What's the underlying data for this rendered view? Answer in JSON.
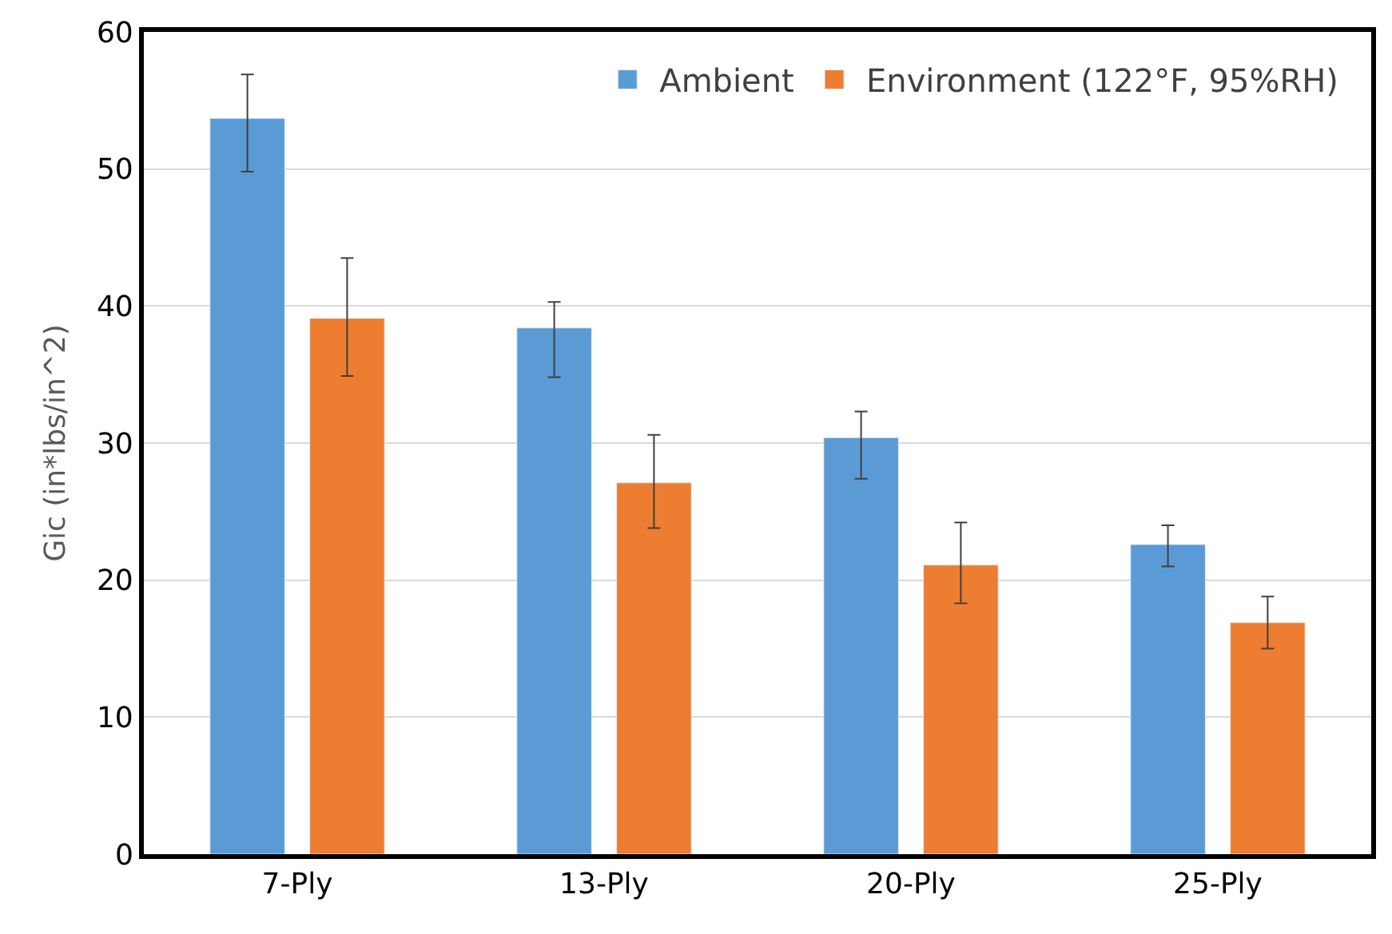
{
  "chart_data": {
    "type": "bar",
    "ylabel": "Gic (in*lbs/in^2)",
    "categories": [
      "7-Ply",
      "13-Ply",
      "20-Ply",
      "25-Ply"
    ],
    "series": [
      {
        "name": "Ambient",
        "color": "#5b9bd5",
        "values": [
          53.7,
          38.4,
          30.4,
          22.6
        ],
        "errors": [
          [
            49.8,
            56.9
          ],
          [
            34.8,
            40.3
          ],
          [
            27.4,
            32.3
          ],
          [
            21.0,
            24.0
          ]
        ]
      },
      {
        "name": "Environment (122°F, 95%RH)",
        "color": "#ed7d31",
        "values": [
          39.1,
          27.1,
          21.1,
          16.9
        ],
        "errors": [
          [
            34.9,
            43.5
          ],
          [
            23.8,
            30.6
          ],
          [
            18.3,
            24.2
          ],
          [
            15.0,
            18.8
          ]
        ]
      }
    ],
    "ylim": [
      0,
      60
    ],
    "yticks": [
      0,
      10,
      20,
      30,
      40,
      50,
      60
    ],
    "grid": "y",
    "legend": "top right"
  }
}
